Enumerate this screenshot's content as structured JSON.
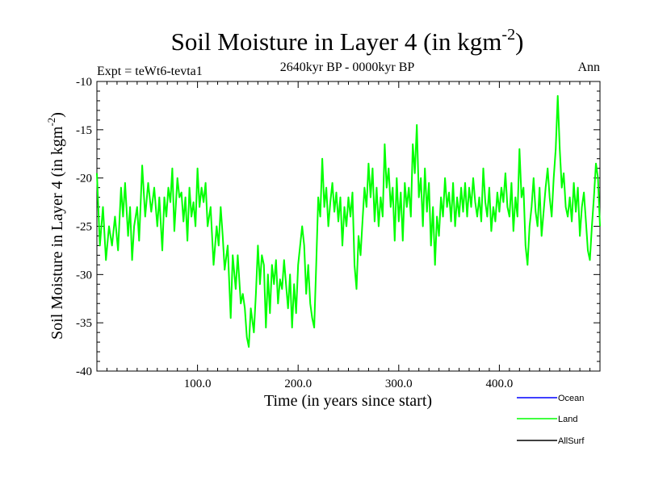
{
  "chart_data": {
    "type": "line",
    "title": "Soil Moisture in Layer 4 (in kgm",
    "title_sup": "-2",
    "title_close": ")",
    "subtitle": "2640kyr BP - 0000kyr BP",
    "expt_label": "Expt = teWt6-tevta1",
    "period_label": "Ann",
    "xlabel": "Time (in years since start)",
    "ylabel": "Soil Moisture in Layer 4 (in kgm",
    "ylabel_sup": "-2",
    "ylabel_close": ")",
    "xlim": [
      0,
      500
    ],
    "ylim": [
      -40,
      -10
    ],
    "x_ticks": [
      100,
      200,
      300,
      400
    ],
    "x_tick_labels": [
      "100.0",
      "200.0",
      "300.0",
      "400.0"
    ],
    "y_ticks": [
      -40,
      -35,
      -30,
      -25,
      -20,
      -15,
      -10
    ],
    "y_tick_labels": [
      "-40",
      "-35",
      "-30",
      "-25",
      "-20",
      "-15",
      "-10"
    ],
    "anchors": [
      [
        0,
        -19.5
      ],
      [
        3,
        -27
      ],
      [
        6,
        -23
      ],
      [
        9,
        -28.5
      ],
      [
        12,
        -25
      ],
      [
        15,
        -27
      ],
      [
        18,
        -24
      ],
      [
        21,
        -27.5
      ],
      [
        24,
        -21
      ],
      [
        26,
        -24
      ],
      [
        28,
        -20.5
      ],
      [
        31,
        -26
      ],
      [
        33,
        -23
      ],
      [
        35,
        -28.5
      ],
      [
        37,
        -25
      ],
      [
        40,
        -23
      ],
      [
        42,
        -26.5
      ],
      [
        45,
        -18.7
      ],
      [
        48,
        -24
      ],
      [
        51,
        -20.5
      ],
      [
        54,
        -23.5
      ],
      [
        57,
        -21
      ],
      [
        60,
        -25
      ],
      [
        62,
        -22
      ],
      [
        65,
        -27.5
      ],
      [
        67,
        -22
      ],
      [
        69,
        -24
      ],
      [
        71,
        -21
      ],
      [
        73,
        -22.5
      ],
      [
        75,
        -19
      ],
      [
        77,
        -25.5
      ],
      [
        80,
        -20
      ],
      [
        82,
        -22
      ],
      [
        84,
        -21.5
      ],
      [
        86,
        -24.5
      ],
      [
        88,
        -22
      ],
      [
        90,
        -26.5
      ],
      [
        92,
        -21
      ],
      [
        94,
        -24
      ],
      [
        96,
        -22.5
      ],
      [
        98,
        -25
      ],
      [
        100,
        -19
      ],
      [
        102,
        -23
      ],
      [
        104,
        -21
      ],
      [
        106,
        -22.5
      ],
      [
        108,
        -20.5
      ],
      [
        110,
        -25
      ],
      [
        113,
        -23
      ],
      [
        116,
        -29
      ],
      [
        119,
        -25
      ],
      [
        121,
        -27
      ],
      [
        123,
        -23
      ],
      [
        125,
        -26
      ],
      [
        127,
        -29.5
      ],
      [
        130,
        -27
      ],
      [
        133,
        -34.5
      ],
      [
        135,
        -28
      ],
      [
        138,
        -31.5
      ],
      [
        140,
        -28
      ],
      [
        143,
        -33
      ],
      [
        145,
        -32
      ],
      [
        147,
        -33.5
      ],
      [
        149,
        -36.5
      ],
      [
        151,
        -37.5
      ],
      [
        153,
        -33.5
      ],
      [
        156,
        -36
      ],
      [
        158,
        -32
      ],
      [
        160,
        -27
      ],
      [
        162,
        -31
      ],
      [
        164,
        -28
      ],
      [
        166,
        -29
      ],
      [
        168,
        -35.5
      ],
      [
        170,
        -30
      ],
      [
        172,
        -34
      ],
      [
        174,
        -29
      ],
      [
        176,
        -31
      ],
      [
        178,
        -28.5
      ],
      [
        180,
        -33
      ],
      [
        182,
        -30.5
      ],
      [
        184,
        -31.5
      ],
      [
        186,
        -28.5
      ],
      [
        188,
        -31
      ],
      [
        190,
        -33.5
      ],
      [
        192,
        -30
      ],
      [
        194,
        -35.5
      ],
      [
        196,
        -31
      ],
      [
        198,
        -34
      ],
      [
        200,
        -29
      ],
      [
        202,
        -27
      ],
      [
        204,
        -25
      ],
      [
        206,
        -27
      ],
      [
        208,
        -32
      ],
      [
        210,
        -29
      ],
      [
        212,
        -33
      ],
      [
        214,
        -34.5
      ],
      [
        216,
        -35.5
      ],
      [
        218,
        -29
      ],
      [
        220,
        -22
      ],
      [
        222,
        -24
      ],
      [
        224,
        -18
      ],
      [
        226,
        -23
      ],
      [
        228,
        -21
      ],
      [
        230,
        -25
      ],
      [
        232,
        -22.5
      ],
      [
        234,
        -20.5
      ],
      [
        236,
        -23.5
      ],
      [
        238,
        -21.5
      ],
      [
        240,
        -24.5
      ],
      [
        242,
        -22
      ],
      [
        244,
        -27
      ],
      [
        246,
        -23
      ],
      [
        248,
        -25
      ],
      [
        250,
        -22
      ],
      [
        252,
        -24
      ],
      [
        254,
        -21.5
      ],
      [
        256,
        -29
      ],
      [
        258,
        -31.5
      ],
      [
        260,
        -26
      ],
      [
        262,
        -28
      ],
      [
        264,
        -24.5
      ],
      [
        266,
        -21
      ],
      [
        268,
        -23
      ],
      [
        270,
        -18.5
      ],
      [
        272,
        -22
      ],
      [
        274,
        -19
      ],
      [
        276,
        -24.5
      ],
      [
        278,
        -21
      ],
      [
        280,
        -25
      ],
      [
        282,
        -22
      ],
      [
        284,
        -24
      ],
      [
        286,
        -16.5
      ],
      [
        288,
        -21
      ],
      [
        290,
        -19
      ],
      [
        292,
        -23
      ],
      [
        294,
        -21
      ],
      [
        296,
        -26.5
      ],
      [
        298,
        -20
      ],
      [
        300,
        -24.5
      ],
      [
        302,
        -21.5
      ],
      [
        304,
        -26.5
      ],
      [
        306,
        -20.5
      ],
      [
        308,
        -23
      ],
      [
        310,
        -21
      ],
      [
        312,
        -24
      ],
      [
        314,
        -16.5
      ],
      [
        316,
        -19.5
      ],
      [
        318,
        -14.5
      ],
      [
        320,
        -22
      ],
      [
        322,
        -20
      ],
      [
        324,
        -25
      ],
      [
        326,
        -19
      ],
      [
        328,
        -23.5
      ],
      [
        330,
        -20.5
      ],
      [
        332,
        -27
      ],
      [
        334,
        -23
      ],
      [
        336,
        -29
      ],
      [
        338,
        -24
      ],
      [
        340,
        -26
      ],
      [
        342,
        -22
      ],
      [
        344,
        -24
      ],
      [
        346,
        -20
      ],
      [
        348,
        -23
      ],
      [
        350,
        -21.5
      ],
      [
        352,
        -24.5
      ],
      [
        354,
        -20.5
      ],
      [
        356,
        -25
      ],
      [
        358,
        -22
      ],
      [
        360,
        -24
      ],
      [
        362,
        -21
      ],
      [
        364,
        -23.5
      ],
      [
        366,
        -20.5
      ],
      [
        368,
        -24
      ],
      [
        370,
        -21
      ],
      [
        372,
        -23
      ],
      [
        374,
        -20
      ],
      [
        376,
        -22.5
      ],
      [
        378,
        -24
      ],
      [
        380,
        -22
      ],
      [
        382,
        -24.5
      ],
      [
        384,
        -19
      ],
      [
        386,
        -22.5
      ],
      [
        388,
        -24
      ],
      [
        390,
        -21
      ],
      [
        392,
        -25.5
      ],
      [
        394,
        -23
      ],
      [
        396,
        -24.5
      ],
      [
        398,
        -21.5
      ],
      [
        400,
        -23.5
      ],
      [
        402,
        -21
      ],
      [
        404,
        -22.5
      ],
      [
        406,
        -19.5
      ],
      [
        408,
        -23
      ],
      [
        410,
        -24
      ],
      [
        412,
        -20.5
      ],
      [
        414,
        -25.5
      ],
      [
        416,
        -22
      ],
      [
        418,
        -24
      ],
      [
        420,
        -17
      ],
      [
        422,
        -22
      ],
      [
        424,
        -21
      ],
      [
        426,
        -27
      ],
      [
        428,
        -29
      ],
      [
        430,
        -25
      ],
      [
        432,
        -23
      ],
      [
        434,
        -20
      ],
      [
        436,
        -23.5
      ],
      [
        438,
        -25
      ],
      [
        440,
        -21
      ],
      [
        442,
        -26
      ],
      [
        444,
        -23.5
      ],
      [
        446,
        -21
      ],
      [
        448,
        -19
      ],
      [
        450,
        -22
      ],
      [
        452,
        -24
      ],
      [
        454,
        -20
      ],
      [
        456,
        -17
      ],
      [
        458,
        -11.5
      ],
      [
        460,
        -17
      ],
      [
        462,
        -21
      ],
      [
        464,
        -19.5
      ],
      [
        466,
        -23
      ],
      [
        468,
        -24
      ],
      [
        470,
        -22
      ],
      [
        472,
        -24.5
      ],
      [
        474,
        -20.5
      ],
      [
        476,
        -23.5
      ],
      [
        478,
        -21
      ],
      [
        480,
        -26
      ],
      [
        482,
        -23
      ],
      [
        484,
        -21.5
      ],
      [
        486,
        -24.5
      ],
      [
        488,
        -27.5
      ],
      [
        490,
        -28.5
      ],
      [
        492,
        -25
      ],
      [
        494,
        -22
      ],
      [
        496,
        -18.5
      ],
      [
        498,
        -20
      ],
      [
        500,
        -25
      ]
    ],
    "series": [
      {
        "name": "Ocean",
        "color": "#0000ff",
        "values": []
      },
      {
        "name": "Land",
        "color": "#00ff00",
        "values": "see anchors"
      },
      {
        "name": "AllSurf",
        "color": "#000000",
        "values": []
      }
    ],
    "legend_position": "bottom-right"
  }
}
